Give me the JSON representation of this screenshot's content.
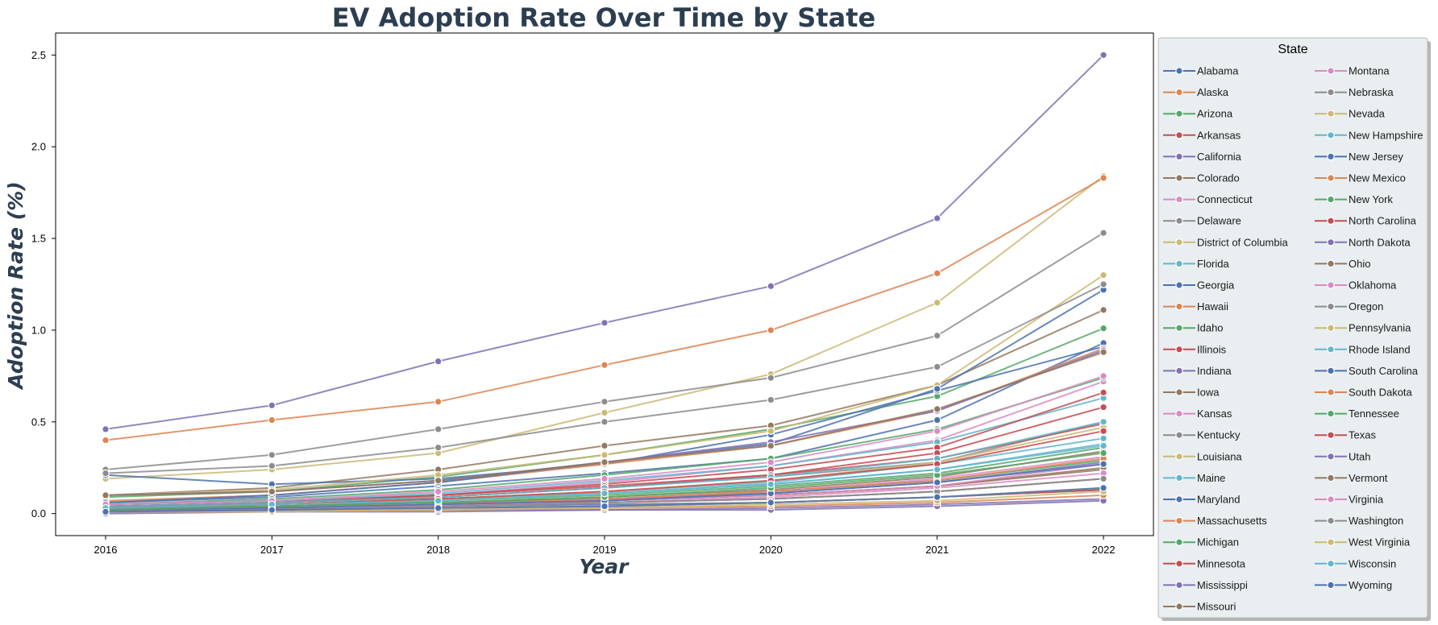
{
  "colors": {
    "palette": [
      "#4c72b0",
      "#dd8452",
      "#55a868",
      "#c44e52",
      "#8172b3",
      "#937860",
      "#da8bc3",
      "#8c8c8c",
      "#ccb974",
      "#64b5cd"
    ],
    "title": "#2c3e50",
    "legend_background": "#e9eef0"
  },
  "chart_data": {
    "type": "line",
    "title": "EV Adoption Rate Over Time by State",
    "xlabel": "Year",
    "ylabel": "Adoption Rate (%)",
    "x": [
      2016,
      2017,
      2018,
      2019,
      2020,
      2021,
      2022
    ],
    "x_ticks": [
      "2016",
      "2017",
      "2018",
      "2019",
      "2020",
      "2021",
      "2022"
    ],
    "y_ticks": [
      "0.0",
      "0.5",
      "1.0",
      "1.5",
      "2.0",
      "2.5"
    ],
    "ylim": [
      -0.12,
      2.62
    ],
    "grid": false,
    "markers": "circle",
    "legend_title": "State",
    "legend_placement": "outside right",
    "series": [
      {
        "name": "Alabama",
        "values": [
          0.03,
          0.03,
          0.04,
          0.05,
          0.06,
          0.09,
          0.13
        ]
      },
      {
        "name": "Alaska",
        "values": [
          0.02,
          0.03,
          0.04,
          0.06,
          0.08,
          0.12,
          0.19
        ]
      },
      {
        "name": "Arizona",
        "values": [
          0.09,
          0.12,
          0.2,
          0.32,
          0.46,
          0.64,
          1.01
        ]
      },
      {
        "name": "Arkansas",
        "values": [
          0.01,
          0.02,
          0.03,
          0.04,
          0.06,
          0.09,
          0.13
        ]
      },
      {
        "name": "California",
        "values": [
          0.46,
          0.59,
          0.83,
          1.04,
          1.24,
          1.61,
          2.5
        ]
      },
      {
        "name": "Colorado",
        "values": [
          0.1,
          0.14,
          0.24,
          0.37,
          0.48,
          0.7,
          1.11
        ]
      },
      {
        "name": "Connecticut",
        "values": [
          0.05,
          0.07,
          0.1,
          0.17,
          0.26,
          0.4,
          0.72
        ]
      },
      {
        "name": "Delaware",
        "values": [
          0.04,
          0.06,
          0.09,
          0.14,
          0.2,
          0.28,
          0.5
        ]
      },
      {
        "name": "District of Columbia",
        "values": [
          0.19,
          0.24,
          0.33,
          0.55,
          0.76,
          1.15,
          1.84
        ]
      },
      {
        "name": "Florida",
        "values": [
          0.05,
          0.07,
          0.11,
          0.18,
          0.26,
          0.39,
          0.63
        ]
      },
      {
        "name": "Georgia",
        "values": [
          0.21,
          0.16,
          0.19,
          0.27,
          0.43,
          0.67,
          0.91
        ]
      },
      {
        "name": "Hawaii",
        "values": [
          0.4,
          0.51,
          0.61,
          0.81,
          1.0,
          1.31,
          1.83
        ]
      },
      {
        "name": "Idaho",
        "values": [
          0.03,
          0.04,
          0.06,
          0.08,
          0.12,
          0.18,
          0.29
        ]
      },
      {
        "name": "Illinois",
        "values": [
          0.04,
          0.06,
          0.1,
          0.16,
          0.24,
          0.36,
          0.66
        ]
      },
      {
        "name": "Indiana",
        "values": [
          0.02,
          0.03,
          0.05,
          0.08,
          0.11,
          0.17,
          0.28
        ]
      },
      {
        "name": "Iowa",
        "values": [
          0.02,
          0.03,
          0.05,
          0.07,
          0.1,
          0.15,
          0.24
        ]
      },
      {
        "name": "Kansas",
        "values": [
          0.02,
          0.03,
          0.05,
          0.08,
          0.12,
          0.19,
          0.31
        ]
      },
      {
        "name": "Kentucky",
        "values": [
          0.02,
          0.03,
          0.04,
          0.06,
          0.08,
          0.12,
          0.19
        ]
      },
      {
        "name": "Louisiana",
        "values": [
          0.01,
          0.02,
          0.03,
          0.04,
          0.06,
          0.09,
          0.14
        ]
      },
      {
        "name": "Maine",
        "values": [
          0.03,
          0.05,
          0.08,
          0.11,
          0.16,
          0.24,
          0.38
        ]
      },
      {
        "name": "Maryland",
        "values": [
          0.06,
          0.09,
          0.15,
          0.22,
          0.3,
          0.51,
          0.93
        ]
      },
      {
        "name": "Massachusetts",
        "values": [
          0.07,
          0.1,
          0.17,
          0.27,
          0.37,
          0.56,
          0.9
        ]
      },
      {
        "name": "Michigan",
        "values": [
          0.03,
          0.04,
          0.07,
          0.1,
          0.15,
          0.22,
          0.36
        ]
      },
      {
        "name": "Minnesota",
        "values": [
          0.04,
          0.06,
          0.1,
          0.15,
          0.21,
          0.33,
          0.58
        ]
      },
      {
        "name": "Mississippi",
        "values": [
          0.01,
          0.01,
          0.02,
          0.02,
          0.03,
          0.05,
          0.08
        ]
      },
      {
        "name": "Missouri",
        "values": [
          0.02,
          0.03,
          0.05,
          0.07,
          0.1,
          0.15,
          0.25
        ]
      },
      {
        "name": "Montana",
        "values": [
          0.02,
          0.03,
          0.04,
          0.06,
          0.09,
          0.14,
          0.22
        ]
      },
      {
        "name": "Nebraska",
        "values": [
          0.01,
          0.02,
          0.04,
          0.06,
          0.08,
          0.12,
          0.19
        ]
      },
      {
        "name": "Nevada",
        "values": [
          0.1,
          0.13,
          0.21,
          0.32,
          0.45,
          0.7,
          1.3
        ]
      },
      {
        "name": "New Hampshire",
        "values": [
          0.03,
          0.05,
          0.08,
          0.12,
          0.17,
          0.27,
          0.41
        ]
      },
      {
        "name": "New Jersey",
        "values": [
          0.06,
          0.1,
          0.17,
          0.28,
          0.38,
          0.68,
          1.22
        ]
      },
      {
        "name": "New Mexico",
        "values": [
          0.02,
          0.03,
          0.05,
          0.08,
          0.12,
          0.18,
          0.3
        ]
      },
      {
        "name": "New York",
        "values": [
          0.05,
          0.08,
          0.13,
          0.21,
          0.3,
          0.46,
          0.74
        ]
      },
      {
        "name": "North Carolina",
        "values": [
          0.04,
          0.06,
          0.09,
          0.14,
          0.21,
          0.3,
          0.49
        ]
      },
      {
        "name": "North Dakota",
        "values": [
          0.0,
          0.01,
          0.01,
          0.02,
          0.02,
          0.04,
          0.07
        ]
      },
      {
        "name": "Ohio",
        "values": [
          0.02,
          0.04,
          0.06,
          0.09,
          0.13,
          0.2,
          0.34
        ]
      },
      {
        "name": "Oklahoma",
        "values": [
          0.02,
          0.03,
          0.05,
          0.07,
          0.1,
          0.15,
          0.27
        ]
      },
      {
        "name": "Oregon",
        "values": [
          0.24,
          0.32,
          0.46,
          0.61,
          0.74,
          0.97,
          1.53
        ]
      },
      {
        "name": "Pennsylvania",
        "values": [
          0.03,
          0.05,
          0.08,
          0.12,
          0.18,
          0.28,
          0.47
        ]
      },
      {
        "name": "Rhode Island",
        "values": [
          0.04,
          0.06,
          0.09,
          0.14,
          0.2,
          0.3,
          0.5
        ]
      },
      {
        "name": "South Carolina",
        "values": [
          0.02,
          0.03,
          0.05,
          0.07,
          0.11,
          0.17,
          0.27
        ]
      },
      {
        "name": "South Dakota",
        "values": [
          0.01,
          0.01,
          0.02,
          0.03,
          0.04,
          0.06,
          0.1
        ]
      },
      {
        "name": "Tennessee",
        "values": [
          0.02,
          0.04,
          0.06,
          0.09,
          0.14,
          0.21,
          0.33
        ]
      },
      {
        "name": "Texas",
        "values": [
          0.03,
          0.05,
          0.08,
          0.12,
          0.18,
          0.27,
          0.45
        ]
      },
      {
        "name": "Utah",
        "values": [
          0.1,
          0.12,
          0.18,
          0.28,
          0.39,
          0.56,
          0.89
        ]
      },
      {
        "name": "Vermont",
        "values": [
          0.1,
          0.12,
          0.18,
          0.28,
          0.37,
          0.57,
          0.88
        ]
      },
      {
        "name": "Virginia",
        "values": [
          0.05,
          0.07,
          0.12,
          0.19,
          0.28,
          0.45,
          0.75
        ]
      },
      {
        "name": "Washington",
        "values": [
          0.22,
          0.26,
          0.36,
          0.5,
          0.62,
          0.8,
          1.25
        ]
      },
      {
        "name": "West Virginia",
        "values": [
          0.01,
          0.01,
          0.02,
          0.03,
          0.05,
          0.07,
          0.12
        ]
      },
      {
        "name": "Wisconsin",
        "values": [
          0.03,
          0.05,
          0.07,
          0.11,
          0.16,
          0.24,
          0.37
        ]
      },
      {
        "name": "Wyoming",
        "values": [
          0.01,
          0.02,
          0.03,
          0.04,
          0.06,
          0.09,
          0.14
        ]
      }
    ]
  }
}
